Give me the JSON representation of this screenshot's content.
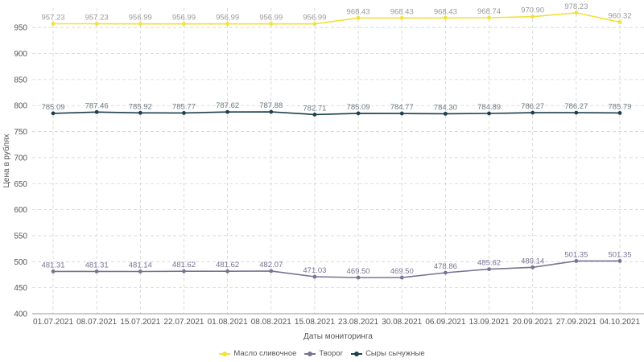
{
  "chart_data": {
    "type": "line",
    "xlabel": "Даты мониторинга",
    "ylabel": "Цена в рублях",
    "ylim": [
      400,
      975
    ],
    "yticks": [
      400,
      450,
      500,
      550,
      600,
      650,
      700,
      750,
      800,
      850,
      900,
      950
    ],
    "grid": true,
    "legend_position": "bottom",
    "categories": [
      "01.07.2021",
      "08.07.2021",
      "15.07.2021",
      "22.07.2021",
      "01.08.2021",
      "08.08.2021",
      "15.08.2021",
      "23.08.2021",
      "30.08.2021",
      "06.09.2021",
      "13.09.2021",
      "20.09.2021",
      "27.09.2021",
      "04.10.2021"
    ],
    "series": [
      {
        "name": "Масло сливочное",
        "color": "#f2e13a",
        "label_color": "#999999",
        "values": [
          957.23,
          957.23,
          956.99,
          956.99,
          956.99,
          956.99,
          956.99,
          968.43,
          968.43,
          968.43,
          968.74,
          970.9,
          978.23,
          960.32
        ],
        "labels": [
          "957.23",
          "957.23",
          "956.99",
          "956.99",
          "956.99",
          "956.99",
          "956.99",
          "968.43",
          "968.43",
          "968.43",
          "968.74",
          "970.90",
          "978.23",
          "960.32"
        ]
      },
      {
        "name": "Творог",
        "color": "#7a7294",
        "label_color": "#7a7294",
        "values": [
          481.31,
          481.31,
          481.14,
          481.62,
          481.62,
          482.07,
          471.03,
          469.5,
          469.5,
          478.86,
          485.62,
          489.14,
          501.35,
          501.35
        ],
        "labels": [
          "481.31",
          "481.31",
          "481.14",
          "481.62",
          "481.62",
          "482.07",
          "471.03",
          "469.50",
          "469.50",
          "478.86",
          "485.62",
          "489.14",
          "501.35",
          "501.35"
        ]
      },
      {
        "name": "Сыры сычужные",
        "color": "#1d3f4c",
        "label_color": "#6a7a80",
        "values": [
          785.09,
          787.46,
          785.92,
          785.77,
          787.62,
          787.88,
          782.71,
          785.09,
          784.77,
          784.3,
          784.89,
          786.27,
          786.27,
          785.79
        ],
        "labels": [
          "785.09",
          "787.46",
          "785.92",
          "785.77",
          "787.62",
          "787.88",
          "782.71",
          "785.09",
          "784.77",
          "784.30",
          "784.89",
          "786.27",
          "786.27",
          "785.79"
        ]
      }
    ]
  }
}
